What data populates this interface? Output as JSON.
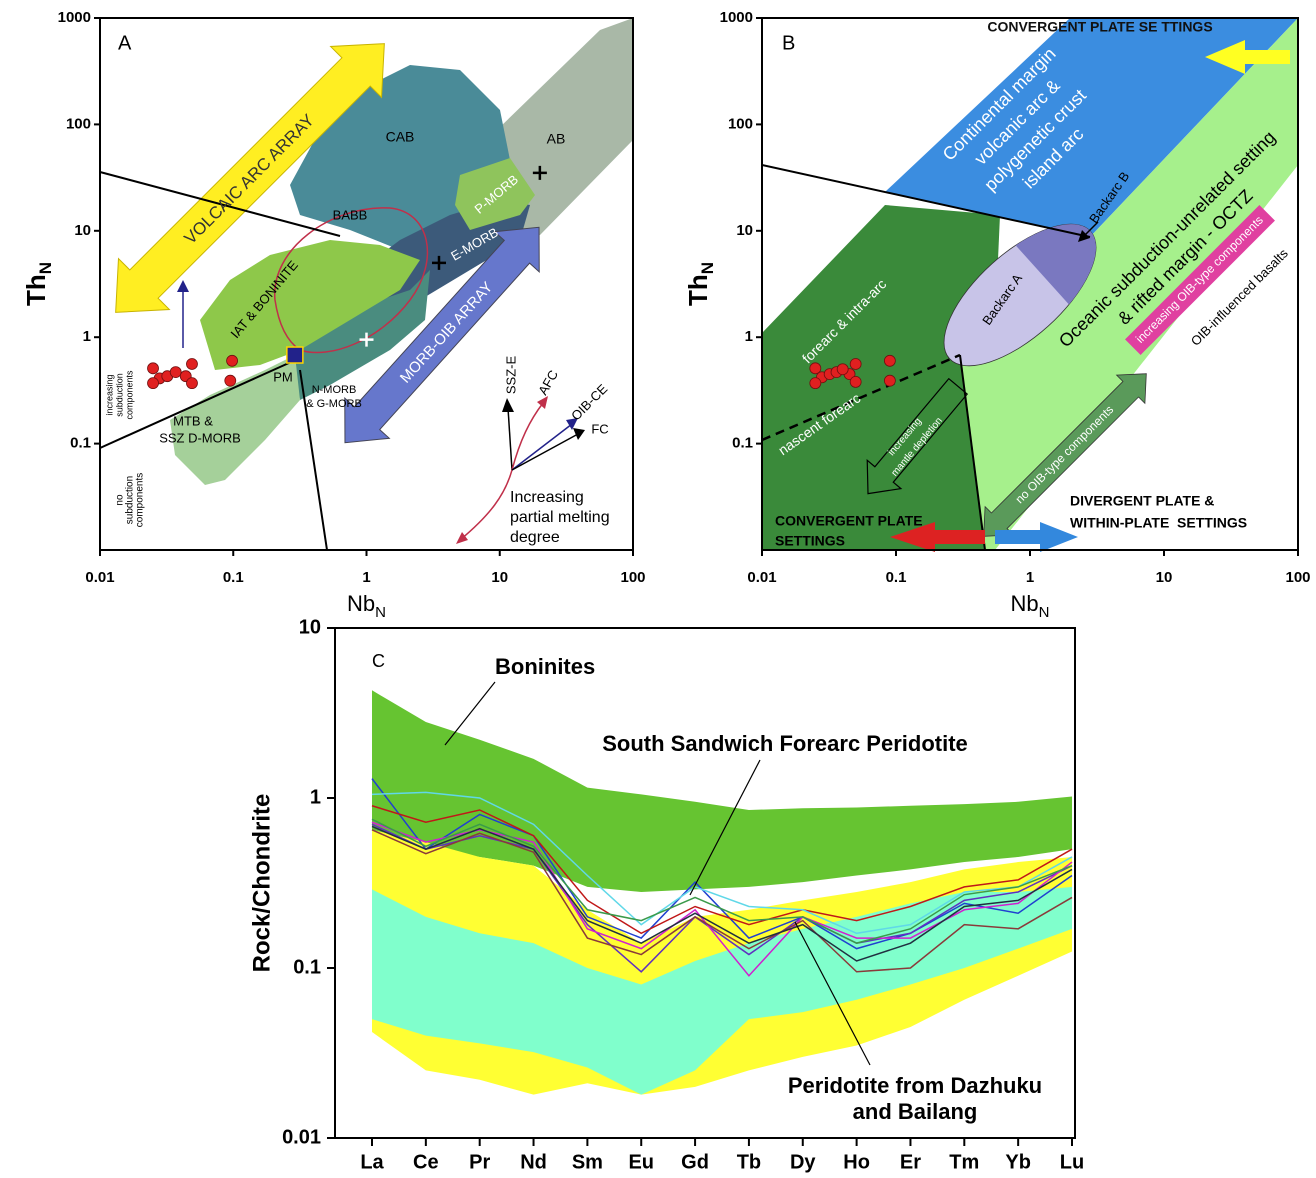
{
  "chart_data": [
    {
      "type": "scatter",
      "panel": "A",
      "xlabel": "Nb",
      "xlabel_sub": "N",
      "ylabel": "Th",
      "ylabel_sub": "N",
      "log_x": true,
      "log_y": true,
      "xlim": [
        0.01,
        100
      ],
      "ylim": [
        0.01,
        1000
      ],
      "xticks": [
        0.01,
        0.1,
        1,
        10,
        100
      ],
      "yticks": [
        0.1,
        1,
        10,
        100,
        1000
      ],
      "series": [
        {
          "color": "#e02020",
          "marker": "circle",
          "x": [
            0.025,
            0.028,
            0.032,
            0.037,
            0.044,
            0.049,
            0.025,
            0.049,
            0.098,
            0.095
          ],
          "y": [
            0.51,
            0.41,
            0.43,
            0.47,
            0.43,
            0.56,
            0.37,
            0.37,
            0.6,
            0.39
          ]
        },
        {
          "color": "#22228a",
          "marker": "square",
          "x": [
            0.29
          ],
          "y": [
            0.68
          ]
        },
        {
          "color": "#000000",
          "marker": "cross",
          "x": [
            3.5,
            20
          ],
          "y": [
            5,
            35
          ]
        },
        {
          "color": "#ffffff",
          "marker": "cross",
          "x": [
            1
          ],
          "y": [
            0.95
          ]
        }
      ],
      "annotations": [
        "A",
        "VOLCAIC ARC ARRAY",
        "CAB",
        "AB",
        "BABB",
        "P-MORB",
        "E-MORB",
        "IAT & BONINITE",
        "MORB-OIB ARRAY",
        "PM",
        "N-MORB",
        "& G-MORB",
        "MTB &",
        "SSZ D-MORB",
        "increasing",
        "subduction",
        "components",
        "no",
        "subduction",
        "components",
        "SSZ-E",
        "AFC",
        "OIB-CE",
        "FC",
        "Increasing",
        "partial melting",
        "degree"
      ]
    },
    {
      "type": "scatter",
      "panel": "B",
      "xlabel": "Nb",
      "xlabel_sub": "N",
      "ylabel": "Th",
      "ylabel_sub": "N",
      "log_x": true,
      "log_y": true,
      "xlim": [
        0.01,
        100
      ],
      "ylim": [
        0.01,
        1000
      ],
      "xticks": [
        0.01,
        0.1,
        1,
        10,
        100
      ],
      "yticks": [
        0.1,
        1,
        10,
        100,
        1000
      ],
      "series": [
        {
          "color": "#e02020",
          "marker": "circle",
          "x": [
            0.025,
            0.028,
            0.032,
            0.036,
            0.045,
            0.05,
            0.025,
            0.05,
            0.09,
            0.09,
            0.04
          ],
          "y": [
            0.51,
            0.42,
            0.45,
            0.47,
            0.45,
            0.56,
            0.37,
            0.38,
            0.6,
            0.39,
            0.5
          ]
        }
      ],
      "annotations": [
        "B",
        "CONVERGENT PLATE SE TTINGS",
        "Continental margin",
        "volcanic arc &",
        "polygenetic crust",
        "island arc",
        "Oceanic subduction-unrelated setting",
        "& rifted margin - OCTZ",
        "Backarc A",
        "Backarc B",
        "forearc & intra-arc",
        "nascent forearc",
        "increasing",
        "mantle depletion",
        "increasing OIB-type components",
        "OIB-influenced basalts",
        "no OIB-type components",
        "CONVERGENT PLATE",
        "SETTINGS",
        "DIVERGENT PLATE &",
        "WITHIN-PLATE  SETTINGS"
      ]
    },
    {
      "type": "line",
      "panel": "C",
      "ylabel": "Rock/Chondrite",
      "log_y": true,
      "ylim": [
        0.01,
        10
      ],
      "yticks": [
        0.01,
        0.1,
        1,
        10
      ],
      "categories": [
        "La",
        "Ce",
        "Pr",
        "Nd",
        "Sm",
        "Eu",
        "Gd",
        "Tb",
        "Dy",
        "Ho",
        "Er",
        "Tm",
        "Yb",
        "Lu"
      ],
      "bands": [
        {
          "color": "#66c431",
          "upper": [
            4.3,
            2.8,
            2.2,
            1.7,
            1.15,
            1.05,
            0.95,
            0.85,
            0.87,
            0.88,
            0.9,
            0.92,
            0.95,
            1.02
          ],
          "lower": [
            0.6,
            0.5,
            0.45,
            0.4,
            0.3,
            0.28,
            0.29,
            0.3,
            0.32,
            0.35,
            0.38,
            0.42,
            0.45,
            0.5
          ]
        },
        {
          "color": "#ffff33",
          "upper": [
            0.65,
            0.55,
            0.45,
            0.4,
            0.22,
            0.14,
            0.2,
            0.22,
            0.25,
            0.28,
            0.32,
            0.38,
            0.42,
            0.45
          ],
          "lower": [
            0.042,
            0.025,
            0.022,
            0.018,
            0.021,
            0.018,
            0.02,
            0.025,
            0.03,
            0.035,
            0.045,
            0.065,
            0.09,
            0.125
          ]
        },
        {
          "color": "#80ffcc",
          "upper": [
            0.29,
            0.2,
            0.16,
            0.14,
            0.1,
            0.08,
            0.11,
            0.14,
            0.17,
            0.2,
            0.24,
            0.28,
            0.28,
            0.3
          ],
          "lower": [
            0.05,
            0.04,
            0.036,
            0.032,
            0.026,
            0.018,
            0.025,
            0.05,
            0.055,
            0.065,
            0.08,
            0.1,
            0.13,
            0.17
          ]
        }
      ],
      "series": [
        {
          "color": "#2040d0",
          "values": [
            1.3,
            0.5,
            0.8,
            0.6,
            0.2,
            0.15,
            0.32,
            0.15,
            0.2,
            0.13,
            0.16,
            0.24,
            0.21,
            0.35
          ]
        },
        {
          "color": "#c01818",
          "values": [
            0.9,
            0.72,
            0.85,
            0.6,
            0.25,
            0.16,
            0.23,
            0.18,
            0.22,
            0.19,
            0.23,
            0.3,
            0.33,
            0.5
          ]
        },
        {
          "color": "#60d8e8",
          "values": [
            1.05,
            1.08,
            1.0,
            0.7,
            0.35,
            0.18,
            0.3,
            0.23,
            0.22,
            0.16,
            0.18,
            0.28,
            0.3,
            0.45
          ]
        },
        {
          "color": "#6030c0",
          "values": [
            0.7,
            0.5,
            0.6,
            0.5,
            0.18,
            0.095,
            0.2,
            0.12,
            0.2,
            0.14,
            0.16,
            0.25,
            0.28,
            0.4
          ]
        },
        {
          "color": "#d020d0",
          "values": [
            0.72,
            0.55,
            0.65,
            0.55,
            0.17,
            0.13,
            0.22,
            0.09,
            0.2,
            0.15,
            0.15,
            0.22,
            0.24,
            0.42
          ]
        },
        {
          "color": "#8a3a3a",
          "values": [
            0.65,
            0.47,
            0.62,
            0.48,
            0.15,
            0.12,
            0.2,
            0.13,
            0.19,
            0.095,
            0.1,
            0.18,
            0.17,
            0.26
          ]
        },
        {
          "color": "#3a9a4a",
          "values": [
            0.75,
            0.52,
            0.7,
            0.52,
            0.22,
            0.19,
            0.26,
            0.19,
            0.2,
            0.14,
            0.17,
            0.27,
            0.3,
            0.4
          ]
        },
        {
          "color": "#203040",
          "values": [
            0.68,
            0.5,
            0.66,
            0.5,
            0.19,
            0.14,
            0.21,
            0.14,
            0.18,
            0.11,
            0.14,
            0.23,
            0.25,
            0.38
          ]
        }
      ],
      "annotations": [
        "C",
        "Boninites",
        "South Sandwich Forearc Peridotite",
        "Peridotite from Dazhuku",
        "and Bailang"
      ]
    }
  ]
}
